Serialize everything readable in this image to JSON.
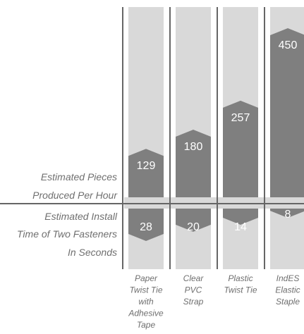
{
  "chart_data": {
    "type": "bar",
    "categories": [
      [
        "Paper",
        "Twist Tie",
        "with",
        "Adhesive",
        "Tape"
      ],
      [
        "Clear",
        "PVC",
        "Strap"
      ],
      [
        "Plastic",
        "Twist Tie"
      ],
      [
        "IndES",
        "Elastic",
        "Staple"
      ]
    ],
    "series": [
      {
        "name_lines": [
          "Estimated Pieces",
          "Produced Per Hour"
        ],
        "values": [
          129,
          180,
          257,
          450
        ],
        "ylim": [
          0,
          450
        ]
      },
      {
        "name_lines": [
          "Estimated  Install",
          "Time of Two Fasteners",
          "In Seconds"
        ],
        "values": [
          28,
          20,
          14,
          8
        ],
        "ylim": [
          0,
          28
        ]
      }
    ],
    "colors": {
      "bar": "#7f7f7f",
      "column": "#d9d9d9",
      "rule": "#666666",
      "value_text": "#ffffff",
      "label_text": "#6f6f6f"
    },
    "grid": false
  }
}
